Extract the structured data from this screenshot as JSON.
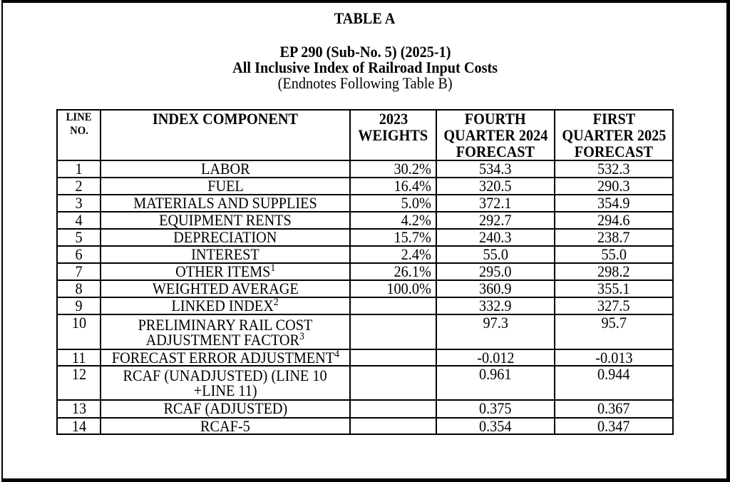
{
  "page": {
    "table_label": "TABLE A",
    "docket": "EP 290 (Sub-No. 5) (2025-1)",
    "title": "All Inclusive Index of Railroad Input Costs",
    "subtitle": "(Endnotes Following Table B)"
  },
  "table": {
    "columns": [
      {
        "id": "line-no",
        "label_lines": [
          "LINE",
          "NO."
        ]
      },
      {
        "id": "component",
        "label_lines": [
          "INDEX COMPONENT"
        ]
      },
      {
        "id": "weights",
        "label_lines": [
          "2023",
          "WEIGHTS"
        ]
      },
      {
        "id": "q4-2024",
        "label_lines": [
          "FOURTH",
          "QUARTER 2024",
          "FORECAST"
        ]
      },
      {
        "id": "q1-2025",
        "label_lines": [
          "FIRST",
          "QUARTER 2025",
          "FORECAST"
        ]
      }
    ],
    "rows": [
      {
        "line_no": "1",
        "component": [
          {
            "text": "LABOR"
          }
        ],
        "weights": "30.2%",
        "q4_2024": "534.3",
        "q1_2025": "532.3"
      },
      {
        "line_no": "2",
        "component": [
          {
            "text": "FUEL"
          }
        ],
        "weights": "16.4%",
        "q4_2024": "320.5",
        "q1_2025": "290.3"
      },
      {
        "line_no": "3",
        "component": [
          {
            "text": "MATERIALS AND SUPPLIES"
          }
        ],
        "weights": "5.0%",
        "q4_2024": "372.1",
        "q1_2025": "354.9"
      },
      {
        "line_no": "4",
        "component": [
          {
            "text": "EQUIPMENT RENTS"
          }
        ],
        "weights": "4.2%",
        "q4_2024": "292.7",
        "q1_2025": "294.6"
      },
      {
        "line_no": "5",
        "component": [
          {
            "text": "DEPRECIATION"
          }
        ],
        "weights": "15.7%",
        "q4_2024": "240.3",
        "q1_2025": "238.7"
      },
      {
        "line_no": "6",
        "component": [
          {
            "text": "INTEREST"
          }
        ],
        "weights": "2.4%",
        "q4_2024": "55.0",
        "q1_2025": "55.0"
      },
      {
        "line_no": "7",
        "component": [
          {
            "text": "OTHER ITEMS",
            "sup": "1"
          }
        ],
        "weights": "26.1%",
        "q4_2024": "295.0",
        "q1_2025": "298.2"
      },
      {
        "line_no": "8",
        "component": [
          {
            "text": "WEIGHTED AVERAGE"
          }
        ],
        "weights": "100.0%",
        "q4_2024": "360.9",
        "q1_2025": "355.1"
      },
      {
        "line_no": "9",
        "component": [
          {
            "text": "LINKED INDEX",
            "sup": "2"
          }
        ],
        "weights": "",
        "q4_2024": "332.9",
        "q1_2025": "327.5"
      },
      {
        "line_no": "10",
        "component": [
          {
            "text": "PRELIMINARY RAIL COST"
          },
          {
            "text": "ADJUSTMENT FACTOR",
            "sup": "3"
          }
        ],
        "weights": "",
        "q4_2024": "97.3",
        "q1_2025": "95.7"
      },
      {
        "line_no": "11",
        "component": [
          {
            "text": "FORECAST ERROR ADJUSTMENT",
            "sup": "4"
          }
        ],
        "weights": "",
        "q4_2024": "-0.012",
        "q1_2025": "-0.013"
      },
      {
        "line_no": "12",
        "component": [
          {
            "text": "RCAF (UNADJUSTED) (LINE 10"
          },
          {
            "text": "+LINE 11)"
          }
        ],
        "weights": "",
        "q4_2024": "0.961",
        "q1_2025": "0.944"
      },
      {
        "line_no": "13",
        "component": [
          {
            "text": "RCAF (ADJUSTED)"
          }
        ],
        "weights": "",
        "q4_2024": "0.375",
        "q1_2025": "0.367"
      },
      {
        "line_no": "14",
        "component": [
          {
            "text": "RCAF-5"
          }
        ],
        "weights": "",
        "q4_2024": "0.354",
        "q1_2025": "0.347"
      }
    ]
  }
}
